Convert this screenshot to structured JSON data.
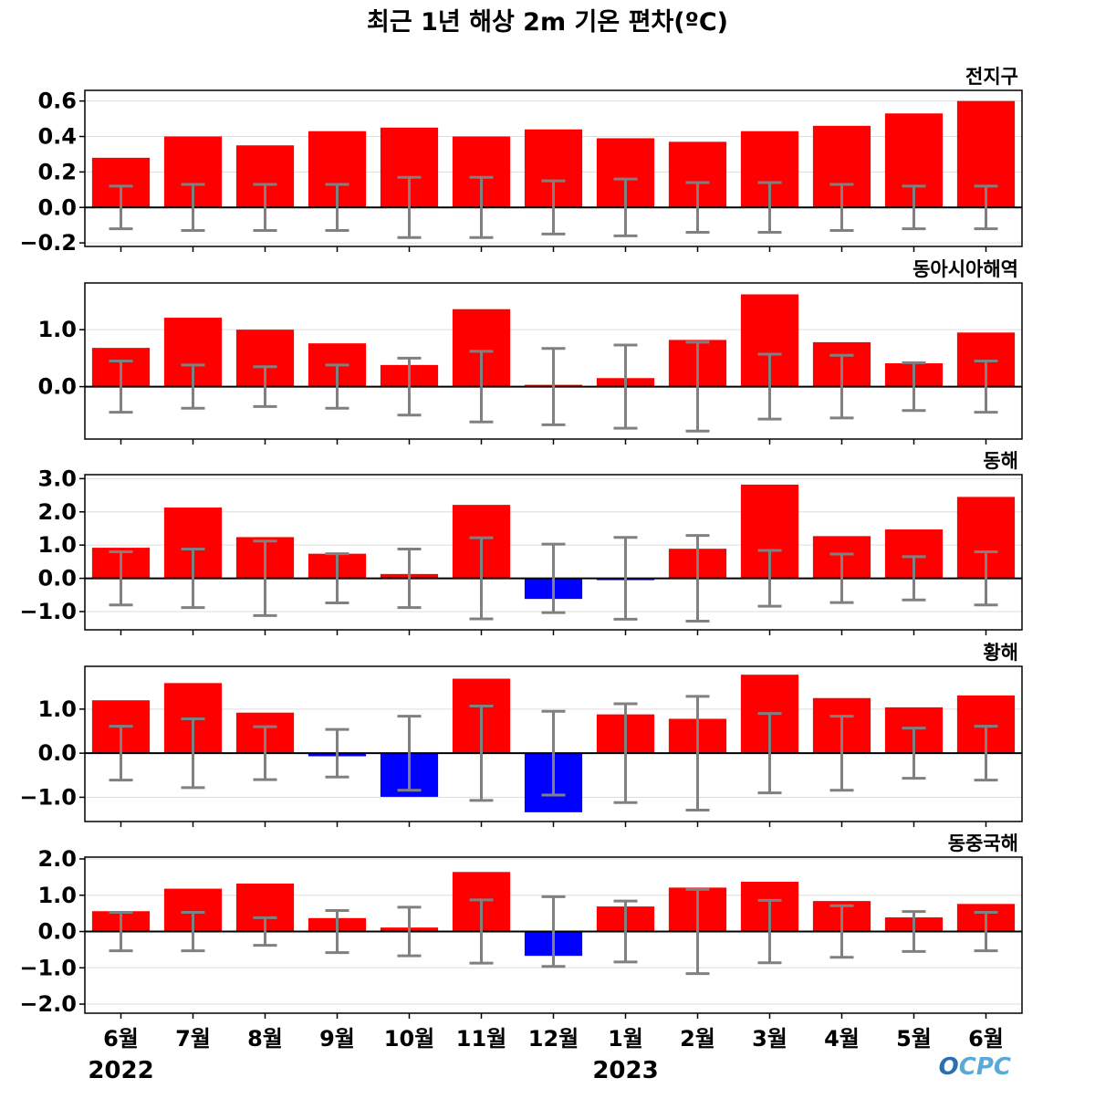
{
  "title": "최근 1년 해상 2m 기온 편차(ºC)",
  "logo": "OCPC",
  "colors": {
    "positive": "#ff0000",
    "negative": "#0000ff",
    "errorbar": "#808080",
    "zero_line": "#000000",
    "grid": "#dddddd",
    "logo_o": "#2a6fb0",
    "logo_rest": "#5aa9d6"
  },
  "x_labels": [
    "6월",
    "7월",
    "8월",
    "9월",
    "10월",
    "11월",
    "12월",
    "1월",
    "2월",
    "3월",
    "4월",
    "5월",
    "6월"
  ],
  "years": [
    {
      "label": "2022",
      "index": 0
    },
    {
      "label": "2023",
      "index": 7
    }
  ],
  "chart_data": [
    {
      "type": "bar",
      "label": "전지구",
      "categories": [
        "6월",
        "7월",
        "8월",
        "9월",
        "10월",
        "11월",
        "12월",
        "1월",
        "2월",
        "3월",
        "4월",
        "5월",
        "6월"
      ],
      "values": [
        0.28,
        0.4,
        0.35,
        0.43,
        0.45,
        0.4,
        0.44,
        0.39,
        0.37,
        0.43,
        0.46,
        0.53,
        0.6
      ],
      "error": [
        0.12,
        0.13,
        0.13,
        0.13,
        0.17,
        0.17,
        0.15,
        0.16,
        0.14,
        0.14,
        0.13,
        0.12,
        0.12
      ],
      "ylim": [
        -0.22,
        0.66
      ],
      "ticks": [
        -0.2,
        0.0,
        0.2,
        0.4,
        0.6
      ],
      "tick_labels": [
        "−0.2",
        "0.0",
        "0.2",
        "0.4",
        "0.6"
      ],
      "grid": true
    },
    {
      "type": "bar",
      "label": "동아시아해역",
      "categories": [
        "6월",
        "7월",
        "8월",
        "9월",
        "10월",
        "11월",
        "12월",
        "1월",
        "2월",
        "3월",
        "4월",
        "5월",
        "6월"
      ],
      "values": [
        0.68,
        1.21,
        1.0,
        0.76,
        0.38,
        1.36,
        0.03,
        0.15,
        0.82,
        1.62,
        0.78,
        0.41,
        0.95
      ],
      "error": [
        0.45,
        0.38,
        0.35,
        0.38,
        0.5,
        0.62,
        0.67,
        0.73,
        0.78,
        0.57,
        0.55,
        0.42,
        0.45
      ],
      "ylim": [
        -0.92,
        1.82
      ],
      "ticks": [
        0.0,
        1.0
      ],
      "tick_labels": [
        "0.0",
        "1.0"
      ],
      "grid": true
    },
    {
      "type": "bar",
      "label": "동해",
      "categories": [
        "6월",
        "7월",
        "8월",
        "9월",
        "10월",
        "11월",
        "12월",
        "1월",
        "2월",
        "3월",
        "4월",
        "5월",
        "6월"
      ],
      "values": [
        0.92,
        2.13,
        1.24,
        0.74,
        0.13,
        2.21,
        -0.62,
        -0.05,
        0.89,
        2.82,
        1.27,
        1.47,
        2.45
      ],
      "error": [
        0.8,
        0.88,
        1.12,
        0.74,
        0.88,
        1.22,
        1.03,
        1.23,
        1.29,
        0.84,
        0.73,
        0.65,
        0.8
      ],
      "ylim": [
        -1.55,
        3.12
      ],
      "ticks": [
        -1.0,
        0.0,
        1.0,
        2.0,
        3.0
      ],
      "tick_labels": [
        "−1.0",
        "0.0",
        "1.0",
        "2.0",
        "3.0"
      ],
      "grid": true
    },
    {
      "type": "bar",
      "label": "황해",
      "categories": [
        "6월",
        "7월",
        "8월",
        "9월",
        "10월",
        "11월",
        "12월",
        "1월",
        "2월",
        "3월",
        "4월",
        "5월",
        "6월"
      ],
      "values": [
        1.2,
        1.59,
        0.92,
        -0.07,
        -0.99,
        1.69,
        -1.34,
        0.88,
        0.78,
        1.78,
        1.25,
        1.04,
        1.31
      ],
      "error": [
        0.61,
        0.78,
        0.6,
        0.54,
        0.84,
        1.07,
        0.95,
        1.12,
        1.29,
        0.9,
        0.84,
        0.57,
        0.61
      ],
      "ylim": [
        -1.55,
        1.97
      ],
      "ticks": [
        -1.0,
        0.0,
        1.0
      ],
      "tick_labels": [
        "−1.0",
        "0.0",
        "1.0"
      ],
      "grid": true
    },
    {
      "type": "bar",
      "label": "동중국해",
      "categories": [
        "6월",
        "7월",
        "8월",
        "9월",
        "10월",
        "11월",
        "12월",
        "1월",
        "2월",
        "3월",
        "4월",
        "5월",
        "6월"
      ],
      "values": [
        0.56,
        1.18,
        1.32,
        0.37,
        0.11,
        1.64,
        -0.67,
        0.69,
        1.21,
        1.37,
        0.84,
        0.39,
        0.76
      ],
      "error": [
        0.53,
        0.53,
        0.38,
        0.58,
        0.67,
        0.87,
        0.96,
        0.84,
        1.16,
        0.86,
        0.71,
        0.55,
        0.53
      ],
      "ylim": [
        -2.25,
        2.05
      ],
      "ticks": [
        -2.0,
        -1.0,
        0.0,
        1.0,
        2.0
      ],
      "tick_labels": [
        "−2.0",
        "−1.0",
        "0.0",
        "1.0",
        "2.0"
      ],
      "grid": true
    }
  ]
}
